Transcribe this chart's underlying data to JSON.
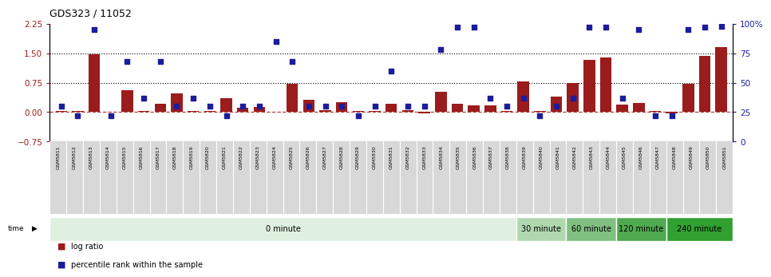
{
  "title": "GDS323 / 11052",
  "samples": [
    "GSM5811",
    "GSM5812",
    "GSM5813",
    "GSM5814",
    "GSM5815",
    "GSM5816",
    "GSM5817",
    "GSM5818",
    "GSM5819",
    "GSM5820",
    "GSM5821",
    "GSM5822",
    "GSM5823",
    "GSM5824",
    "GSM5825",
    "GSM5826",
    "GSM5827",
    "GSM5828",
    "GSM5829",
    "GSM5830",
    "GSM5831",
    "GSM5832",
    "GSM5833",
    "GSM5834",
    "GSM5835",
    "GSM5836",
    "GSM5837",
    "GSM5838",
    "GSM5839",
    "GSM5840",
    "GSM5841",
    "GSM5842",
    "GSM5843",
    "GSM5844",
    "GSM5845",
    "GSM5846",
    "GSM5847",
    "GSM5848",
    "GSM5849",
    "GSM5850",
    "GSM5851"
  ],
  "log_ratio": [
    0.04,
    0.02,
    1.47,
    0.0,
    0.55,
    0.04,
    0.22,
    0.48,
    0.02,
    0.04,
    0.36,
    0.12,
    0.14,
    0.0,
    0.73,
    0.31,
    0.05,
    0.25,
    0.04,
    0.04,
    0.22,
    0.05,
    -0.04,
    0.52,
    0.22,
    0.18,
    0.17,
    0.03,
    0.78,
    0.04,
    0.4,
    0.75,
    1.33,
    1.38,
    0.2,
    0.23,
    0.04,
    -0.04,
    0.72,
    1.44,
    1.65
  ],
  "percentile": [
    30,
    22,
    95,
    22,
    68,
    37,
    68,
    30,
    37,
    30,
    22,
    30,
    30,
    85,
    68,
    30,
    30,
    30,
    22,
    30,
    60,
    30,
    30,
    78,
    97,
    97,
    37,
    30,
    37,
    22,
    30,
    37,
    97,
    97,
    37,
    95,
    22,
    22,
    95,
    97,
    98
  ],
  "log_ratio_color": "#9b1c1c",
  "percentile_color": "#1c1c9b",
  "ylim_left": [
    -0.75,
    2.25
  ],
  "ylim_right": [
    0,
    100
  ],
  "yticks_left": [
    -0.75,
    0.0,
    0.75,
    1.5,
    2.25
  ],
  "yticks_right": [
    0,
    25,
    50,
    75,
    100
  ],
  "hlines": [
    0.75,
    1.5
  ],
  "zero_line": 0.0,
  "time_groups": [
    {
      "label": "0 minute",
      "start": 0,
      "end": 28,
      "color": "#e0f0e0"
    },
    {
      "label": "30 minute",
      "start": 28,
      "end": 31,
      "color": "#b0d8b0"
    },
    {
      "label": "60 minute",
      "start": 31,
      "end": 34,
      "color": "#80c080"
    },
    {
      "label": "120 minute",
      "start": 34,
      "end": 37,
      "color": "#50aa50"
    },
    {
      "label": "240 minute",
      "start": 37,
      "end": 41,
      "color": "#30a030"
    }
  ],
  "bg_color": "#ffffff",
  "label_bg": "#d8d8d8"
}
